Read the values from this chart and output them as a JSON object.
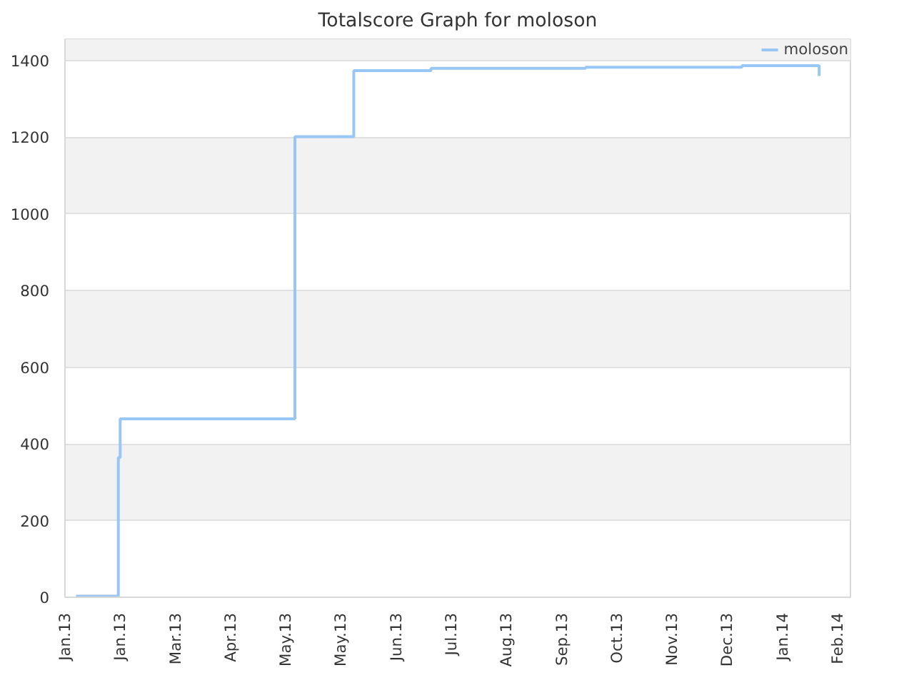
{
  "chart_data": {
    "type": "step",
    "title": "Totalscore Graph for moloson",
    "x": [
      "2013-01-07",
      "2013-01-30",
      "2013-01-31",
      "2013-05-06",
      "2013-06-07",
      "2013-07-19",
      "2013-10-11",
      "2014-01-04",
      "2014-02-15",
      "2014-02-15"
    ],
    "series": [
      {
        "name": "moloson",
        "color": "#99c7f5",
        "values": [
          3,
          364,
          465,
          1201,
          1373,
          1379,
          1382,
          1386,
          1386,
          1359
        ]
      }
    ],
    "xlim": [
      "2013-01-01",
      "2014-03-04"
    ],
    "xticks": [
      {
        "value": "2013-01-01",
        "label": "Jan.13"
      },
      {
        "value": "2013-01-31",
        "label": "Jan.13"
      },
      {
        "value": "2013-03-02",
        "label": "Mar.13"
      },
      {
        "value": "2013-04-01",
        "label": "Apr.13"
      },
      {
        "value": "2013-05-01",
        "label": "May.13"
      },
      {
        "value": "2013-05-31",
        "label": "May.13"
      },
      {
        "value": "2013-06-30",
        "label": "Jun.13"
      },
      {
        "value": "2013-07-30",
        "label": "Jul.13"
      },
      {
        "value": "2013-08-29",
        "label": "Aug.13"
      },
      {
        "value": "2013-09-28",
        "label": "Sep.13"
      },
      {
        "value": "2013-10-28",
        "label": "Oct.13"
      },
      {
        "value": "2013-11-27",
        "label": "Nov.13"
      },
      {
        "value": "2013-12-27",
        "label": "Dec.13"
      },
      {
        "value": "2014-01-26",
        "label": "Jan.14"
      },
      {
        "value": "2014-02-25",
        "label": "Feb.14"
      }
    ],
    "ylim": [
      0,
      1455
    ],
    "yticks": [
      0,
      200,
      400,
      600,
      800,
      1000,
      1200,
      1400
    ],
    "grid": "y",
    "legend": "top right"
  }
}
